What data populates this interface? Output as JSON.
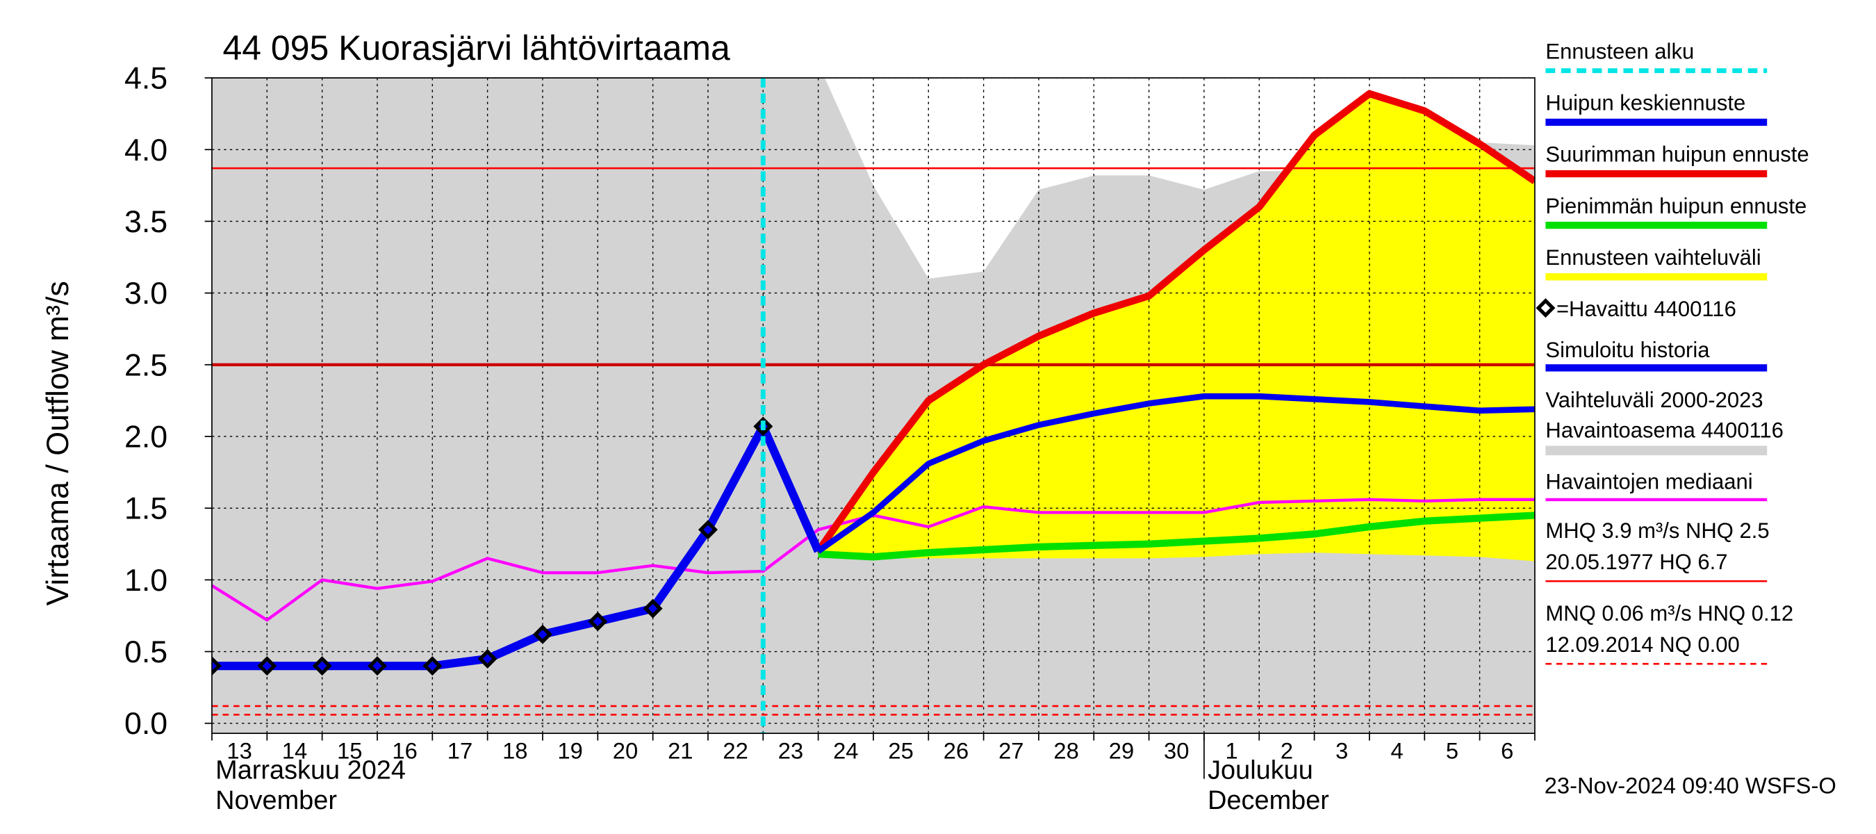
{
  "chart_data": {
    "type": "line",
    "title": "44 095 Kuorasjärvi lähtövirtaama",
    "y_label": "Virtaama / Outflow    m³/s",
    "xlim": [
      0,
      24
    ],
    "xticks": [
      {
        "value": 0.5,
        "label": "13"
      },
      {
        "value": 1.5,
        "label": "14"
      },
      {
        "value": 2.5,
        "label": "15"
      },
      {
        "value": 3.5,
        "label": "16"
      },
      {
        "value": 4.5,
        "label": "17"
      },
      {
        "value": 5.5,
        "label": "18"
      },
      {
        "value": 6.5,
        "label": "19"
      },
      {
        "value": 7.5,
        "label": "20"
      },
      {
        "value": 8.5,
        "label": "21"
      },
      {
        "value": 9.5,
        "label": "22"
      },
      {
        "value": 10.5,
        "label": "23"
      },
      {
        "value": 11.5,
        "label": "24"
      },
      {
        "value": 12.5,
        "label": "25"
      },
      {
        "value": 13.5,
        "label": "26"
      },
      {
        "value": 14.5,
        "label": "27"
      },
      {
        "value": 15.5,
        "label": "28"
      },
      {
        "value": 16.5,
        "label": "29"
      },
      {
        "value": 17.5,
        "label": "30"
      },
      {
        "value": 18.5,
        "label": "1"
      },
      {
        "value": 19.5,
        "label": "2"
      },
      {
        "value": 20.5,
        "label": "3"
      },
      {
        "value": 21.5,
        "label": "4"
      },
      {
        "value": 22.5,
        "label": "5"
      },
      {
        "value": 23.5,
        "label": "6"
      }
    ],
    "months": [
      {
        "x": 0,
        "lines": [
          "Marraskuu 2024",
          "November"
        ]
      },
      {
        "x": 18,
        "lines": [
          "Joulukuu",
          "December"
        ]
      }
    ],
    "ylim": [
      -0.07,
      4.5
    ],
    "yticks": [
      {
        "value": 0,
        "label": "0.0"
      },
      0.5,
      {
        "value": 1,
        "label": "1.0"
      },
      1.5,
      {
        "value": 2,
        "label": "2.0"
      },
      2.5,
      {
        "value": 3,
        "label": "3.0"
      },
      3.5,
      {
        "value": 4,
        "label": "4.0"
      },
      4.5
    ],
    "grid": true,
    "range": {
      "name": [
        "Vaihteluväli 2000-2023",
        " Havaintoasema 4400116"
      ],
      "color": "#d3d3d3",
      "x": [
        0,
        1,
        2,
        3,
        4,
        5,
        6,
        7,
        8,
        9,
        10,
        11,
        12,
        13,
        14,
        15,
        16,
        17,
        18,
        19,
        20,
        21,
        22,
        23,
        24
      ],
      "upper": [
        4.5,
        4.5,
        4.5,
        4.5,
        4.5,
        4.5,
        4.5,
        4.5,
        4.5,
        4.5,
        4.5,
        4.6,
        3.75,
        3.1,
        3.15,
        3.72,
        3.82,
        3.82,
        3.72,
        3.85,
        3.85,
        3.93,
        4.05,
        4.05,
        4.03
      ]
    },
    "band": {
      "name": "Ennusteen vaihteluväli",
      "color": "#ffff00",
      "x": [
        11,
        12,
        13,
        14,
        15,
        16,
        17,
        18,
        19,
        20,
        21,
        22,
        23,
        24
      ],
      "upper": [
        1.2,
        1.75,
        2.25,
        2.5,
        2.7,
        2.86,
        2.98,
        3.3,
        3.6,
        4.1,
        4.39,
        4.27,
        4.04,
        3.78
      ],
      "lower": [
        1.18,
        1.15,
        1.15,
        1.15,
        1.15,
        1.15,
        1.15,
        1.16,
        1.18,
        1.19,
        1.18,
        1.17,
        1.16,
        1.13
      ]
    },
    "series": [
      {
        "name": "Havaintojen mediaani",
        "color": "#ff00ff",
        "width": 2.5,
        "x": [
          0,
          1,
          2,
          3,
          4,
          5,
          6,
          7,
          8,
          9,
          10,
          11,
          12,
          13,
          14,
          15,
          16,
          17,
          18,
          19,
          20,
          21,
          22,
          23,
          24
        ],
        "values": [
          0.96,
          0.72,
          1.0,
          0.94,
          0.99,
          1.15,
          1.05,
          1.05,
          1.1,
          1.05,
          1.06,
          1.35,
          1.45,
          1.37,
          1.51,
          1.47,
          1.47,
          1.47,
          1.47,
          1.54,
          1.55,
          1.56,
          1.55,
          1.56,
          1.56
        ]
      },
      {
        "name": "Pienimmän huipun ennuste",
        "color": "#00e000",
        "width": 6,
        "x": [
          11,
          12,
          13,
          14,
          15,
          16,
          17,
          18,
          19,
          20,
          21,
          22,
          23,
          24
        ],
        "values": [
          1.18,
          1.16,
          1.19,
          1.21,
          1.23,
          1.24,
          1.25,
          1.27,
          1.29,
          1.32,
          1.37,
          1.41,
          1.43,
          1.45
        ]
      },
      {
        "name": "Suurimman huipun ennuste",
        "color": "#ee0000",
        "width": 6,
        "x": [
          11,
          12,
          13,
          14,
          15,
          16,
          17,
          18,
          19,
          20,
          21,
          22,
          23,
          24
        ],
        "values": [
          1.2,
          1.75,
          2.25,
          2.5,
          2.7,
          2.86,
          2.98,
          3.3,
          3.6,
          4.1,
          4.39,
          4.27,
          4.04,
          3.78
        ]
      },
      {
        "name": "Huipun keskiennuste",
        "color": "#0000ee",
        "width": 5,
        "x": [
          11,
          12,
          13,
          14,
          15,
          16,
          17,
          18,
          19,
          20,
          21,
          22,
          23,
          24
        ],
        "values": [
          1.2,
          1.47,
          1.81,
          1.97,
          2.08,
          2.16,
          2.23,
          2.28,
          2.28,
          2.26,
          2.24,
          2.21,
          2.18,
          2.19
        ]
      },
      {
        "name": "Simuloitu historia",
        "color": "#0000ee",
        "width": 7,
        "x": [
          0,
          1,
          2,
          3,
          4,
          5,
          6,
          7,
          8,
          9,
          10,
          11
        ],
        "values": [
          0.4,
          0.4,
          0.4,
          0.4,
          0.4,
          0.45,
          0.62,
          0.71,
          0.8,
          1.35,
          2.07,
          1.2
        ]
      }
    ],
    "observed": {
      "name": "=Havaittu 4400116",
      "x": [
        0,
        1,
        2,
        3,
        4,
        5,
        6,
        7,
        8,
        9,
        10
      ],
      "values": [
        0.4,
        0.4,
        0.4,
        0.4,
        0.4,
        0.45,
        0.62,
        0.71,
        0.8,
        1.35,
        2.07
      ]
    },
    "forecast_start": {
      "name": "Ennusteen alku",
      "x": 10,
      "color": "#00e5e5"
    },
    "reference_lines": [
      {
        "value": 3.87,
        "color": "#ff0000",
        "width": 1.5
      },
      {
        "value": 2.5,
        "color": "#cc0000",
        "width": 2.5
      },
      {
        "value": 0.12,
        "color": "#ff0000",
        "width": 1.5,
        "dashed": true
      },
      {
        "value": 0.06,
        "color": "#ff0000",
        "width": 1.5,
        "dashed": true
      }
    ],
    "reference_notes": [
      {
        "lines": [
          "MHQ  3.9 m³/s NHQ  2.5",
          "20.05.1977 HQ  6.7"
        ],
        "color": "#ff0000",
        "dashed": false
      },
      {
        "lines": [
          "MNQ 0.06 m³/s HNQ 0.12",
          "12.09.2014 NQ 0.00"
        ],
        "color": "#ff0000",
        "dashed": true
      }
    ],
    "footer": "23-Nov-2024 09:40 WSFS-O"
  }
}
